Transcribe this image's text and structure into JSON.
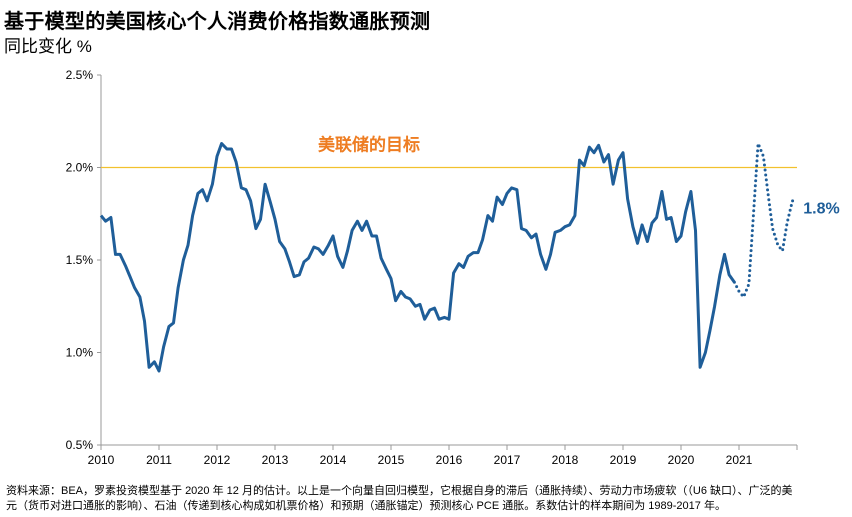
{
  "chart_data": {
    "type": "line",
    "title": "基于模型的美国核心个人消费价格指数通胀预测",
    "subtitle": "同比变化 %",
    "xlabel": "",
    "ylabel": "",
    "xlim": [
      2010,
      2022
    ],
    "ylim": [
      0.5,
      2.5
    ],
    "x_ticks": [
      "2010",
      "2011",
      "2012",
      "2013",
      "2014",
      "2015",
      "2016",
      "2017",
      "2018",
      "2019",
      "2020",
      "2021"
    ],
    "y_ticks": [
      "0.5%",
      "1.0%",
      "1.5%",
      "2.0%",
      "2.5%"
    ],
    "y_tick_values": [
      0.5,
      1.0,
      1.5,
      2.0,
      2.5
    ],
    "grid": false,
    "colors": {
      "series": "#1f5e99",
      "target": "#f2c12e",
      "target_label": "#ee7d22"
    },
    "reference_line": {
      "value": 2.0,
      "label": "美联储的目标"
    },
    "end_label": "1.8%",
    "series": [
      {
        "style": "solid",
        "points": [
          [
            2010.0,
            1.74
          ],
          [
            2010.08,
            1.71
          ],
          [
            2010.17,
            1.73
          ],
          [
            2010.25,
            1.53
          ],
          [
            2010.33,
            1.53
          ],
          [
            2010.42,
            1.47
          ],
          [
            2010.5,
            1.41
          ],
          [
            2010.58,
            1.35
          ],
          [
            2010.67,
            1.3
          ],
          [
            2010.75,
            1.17
          ],
          [
            2010.83,
            0.92
          ],
          [
            2010.92,
            0.95
          ],
          [
            2011.0,
            0.9
          ],
          [
            2011.08,
            1.03
          ],
          [
            2011.17,
            1.14
          ],
          [
            2011.25,
            1.16
          ],
          [
            2011.33,
            1.35
          ],
          [
            2011.42,
            1.5
          ],
          [
            2011.5,
            1.58
          ],
          [
            2011.58,
            1.74
          ],
          [
            2011.67,
            1.86
          ],
          [
            2011.75,
            1.88
          ],
          [
            2011.83,
            1.82
          ],
          [
            2011.92,
            1.91
          ],
          [
            2012.0,
            2.06
          ],
          [
            2012.08,
            2.13
          ],
          [
            2012.17,
            2.1
          ],
          [
            2012.25,
            2.1
          ],
          [
            2012.33,
            2.03
          ],
          [
            2012.42,
            1.89
          ],
          [
            2012.5,
            1.88
          ],
          [
            2012.58,
            1.82
          ],
          [
            2012.67,
            1.67
          ],
          [
            2012.75,
            1.72
          ],
          [
            2012.83,
            1.91
          ],
          [
            2012.92,
            1.81
          ],
          [
            2013.0,
            1.72
          ],
          [
            2013.08,
            1.6
          ],
          [
            2013.17,
            1.56
          ],
          [
            2013.25,
            1.49
          ],
          [
            2013.33,
            1.41
          ],
          [
            2013.42,
            1.42
          ],
          [
            2013.5,
            1.49
          ],
          [
            2013.58,
            1.51
          ],
          [
            2013.67,
            1.57
          ],
          [
            2013.75,
            1.56
          ],
          [
            2013.83,
            1.53
          ],
          [
            2013.92,
            1.58
          ],
          [
            2014.0,
            1.63
          ],
          [
            2014.08,
            1.52
          ],
          [
            2014.17,
            1.46
          ],
          [
            2014.25,
            1.55
          ],
          [
            2014.33,
            1.66
          ],
          [
            2014.42,
            1.71
          ],
          [
            2014.5,
            1.66
          ],
          [
            2014.58,
            1.71
          ],
          [
            2014.67,
            1.63
          ],
          [
            2014.75,
            1.63
          ],
          [
            2014.83,
            1.51
          ],
          [
            2014.92,
            1.45
          ],
          [
            2015.0,
            1.4
          ],
          [
            2015.08,
            1.28
          ],
          [
            2015.17,
            1.33
          ],
          [
            2015.25,
            1.3
          ],
          [
            2015.33,
            1.29
          ],
          [
            2015.42,
            1.25
          ],
          [
            2015.5,
            1.26
          ],
          [
            2015.58,
            1.18
          ],
          [
            2015.67,
            1.23
          ],
          [
            2015.75,
            1.24
          ],
          [
            2015.83,
            1.18
          ],
          [
            2015.92,
            1.19
          ],
          [
            2016.0,
            1.18
          ],
          [
            2016.08,
            1.43
          ],
          [
            2016.17,
            1.48
          ],
          [
            2016.25,
            1.46
          ],
          [
            2016.33,
            1.52
          ],
          [
            2016.42,
            1.54
          ],
          [
            2016.5,
            1.54
          ],
          [
            2016.58,
            1.61
          ],
          [
            2016.67,
            1.74
          ],
          [
            2016.75,
            1.71
          ],
          [
            2016.83,
            1.84
          ],
          [
            2016.92,
            1.8
          ],
          [
            2017.0,
            1.86
          ],
          [
            2017.08,
            1.89
          ],
          [
            2017.17,
            1.88
          ],
          [
            2017.25,
            1.67
          ],
          [
            2017.33,
            1.66
          ],
          [
            2017.42,
            1.62
          ],
          [
            2017.5,
            1.64
          ],
          [
            2017.58,
            1.53
          ],
          [
            2017.67,
            1.45
          ],
          [
            2017.75,
            1.53
          ],
          [
            2017.83,
            1.65
          ],
          [
            2017.92,
            1.66
          ],
          [
            2018.0,
            1.68
          ],
          [
            2018.08,
            1.69
          ],
          [
            2018.17,
            1.74
          ],
          [
            2018.25,
            2.04
          ],
          [
            2018.33,
            2.01
          ],
          [
            2018.42,
            2.11
          ],
          [
            2018.5,
            2.08
          ],
          [
            2018.58,
            2.12
          ],
          [
            2018.67,
            2.03
          ],
          [
            2018.75,
            2.07
          ],
          [
            2018.83,
            1.91
          ],
          [
            2018.92,
            2.04
          ],
          [
            2019.0,
            2.08
          ],
          [
            2019.08,
            1.83
          ],
          [
            2019.17,
            1.68
          ],
          [
            2019.25,
            1.59
          ],
          [
            2019.33,
            1.69
          ],
          [
            2019.42,
            1.6
          ],
          [
            2019.5,
            1.7
          ],
          [
            2019.58,
            1.73
          ],
          [
            2019.67,
            1.87
          ],
          [
            2019.75,
            1.72
          ],
          [
            2019.83,
            1.73
          ],
          [
            2019.92,
            1.6
          ],
          [
            2020.0,
            1.63
          ],
          [
            2020.08,
            1.76
          ],
          [
            2020.17,
            1.87
          ],
          [
            2020.25,
            1.66
          ],
          [
            2020.33,
            0.92
          ],
          [
            2020.42,
            1.0
          ],
          [
            2020.5,
            1.12
          ],
          [
            2020.58,
            1.25
          ],
          [
            2020.67,
            1.42
          ],
          [
            2020.75,
            1.53
          ],
          [
            2020.83,
            1.42
          ],
          [
            2020.92,
            1.38
          ]
        ]
      },
      {
        "style": "dotted",
        "points": [
          [
            2020.92,
            1.38
          ],
          [
            2021.0,
            1.33
          ],
          [
            2021.08,
            1.3
          ],
          [
            2021.17,
            1.37
          ],
          [
            2021.25,
            1.75
          ],
          [
            2021.33,
            2.13
          ],
          [
            2021.42,
            2.06
          ],
          [
            2021.5,
            1.86
          ],
          [
            2021.58,
            1.67
          ],
          [
            2021.67,
            1.58
          ],
          [
            2021.75,
            1.55
          ],
          [
            2021.83,
            1.7
          ],
          [
            2021.92,
            1.82
          ],
          [
            2021.97,
            1.81
          ]
        ]
      }
    ]
  },
  "footnote": {
    "line1": "资料来源：BEA，罗素投资模型基于 2020 年 12 月的估计。以上是一个向量自回归模型，它根据自身的滞后（通胀持续）、劳动力市场疲软（（U6 缺口）、广泛的美",
    "line2": "元（货币对进口通胀的影响）、石油（传递到核心构成如机票价格）和预期（通胀锚定）预测核心 PCE 通胀。系数估计的样本期间为 1989-2017 年。"
  }
}
